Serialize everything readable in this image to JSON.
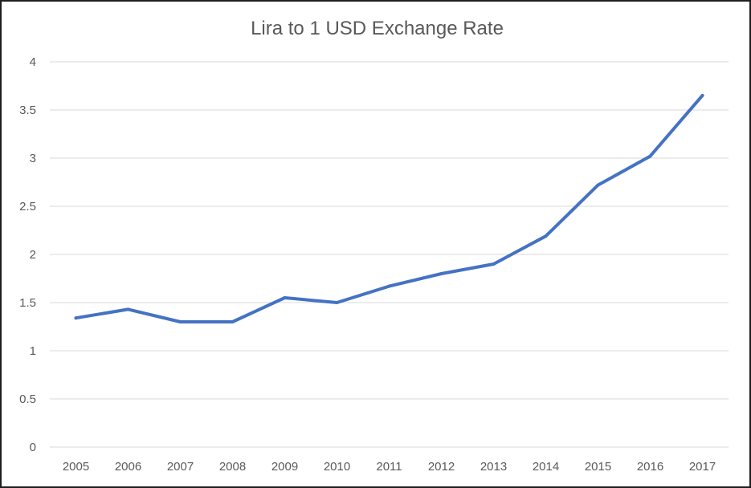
{
  "chart_data": {
    "type": "line",
    "title": "Lira to 1 USD Exchange Rate",
    "xlabel": "",
    "ylabel": "",
    "categories": [
      "2005",
      "2006",
      "2007",
      "2008",
      "2009",
      "2010",
      "2011",
      "2012",
      "2013",
      "2014",
      "2015",
      "2016",
      "2017"
    ],
    "series": [
      {
        "values": [
          1.34,
          1.43,
          1.3,
          1.3,
          1.55,
          1.5,
          1.67,
          1.8,
          1.9,
          2.19,
          2.72,
          3.02,
          3.65
        ]
      }
    ],
    "ylim": [
      0,
      4
    ],
    "yticks": [
      "0",
      "0.5",
      "1",
      "1.5",
      "2",
      "2.5",
      "3",
      "3.5",
      "4"
    ],
    "grid": true,
    "legend": "none",
    "colors": {
      "line": "#4472C4",
      "grid": "#d9d9d9",
      "text": "#595959"
    }
  }
}
